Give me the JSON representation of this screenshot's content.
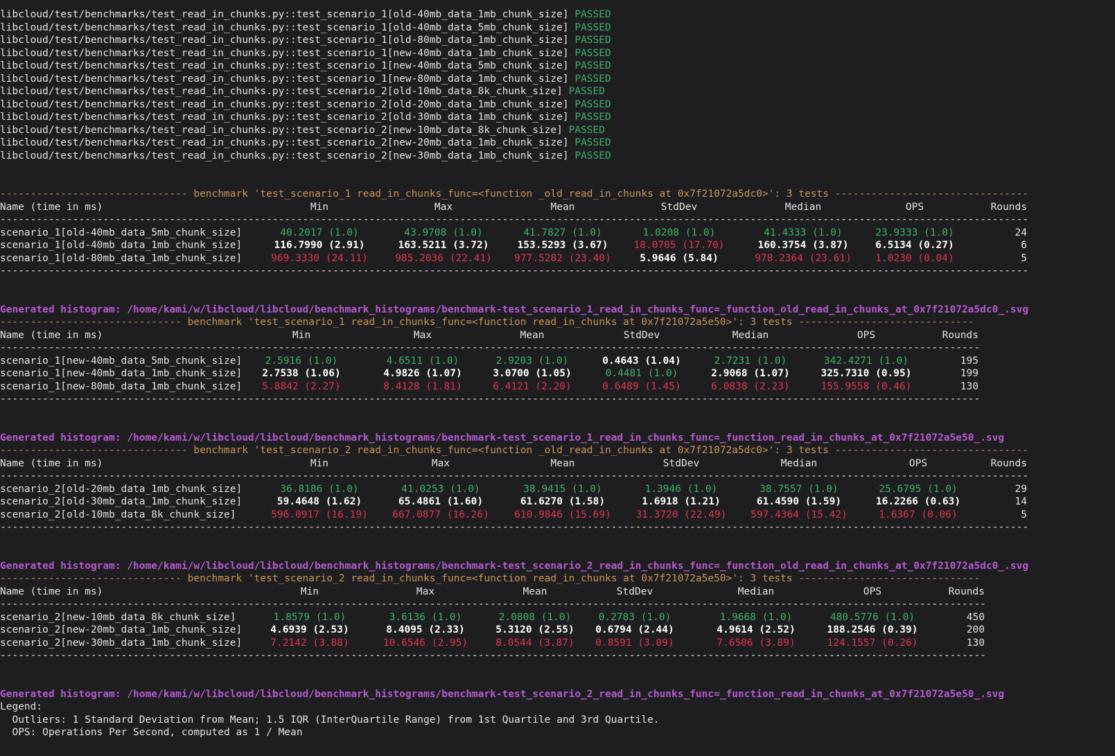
{
  "tests": [
    {
      "name": "libcloud/test/benchmarks/test_read_in_chunks.py::test_scenario_1[old-40mb_data_1mb_chunk_size]",
      "status": "PASSED"
    },
    {
      "name": "libcloud/test/benchmarks/test_read_in_chunks.py::test_scenario_1[old-40mb_data_5mb_chunk_size]",
      "status": "PASSED"
    },
    {
      "name": "libcloud/test/benchmarks/test_read_in_chunks.py::test_scenario_1[old-80mb_data_1mb_chunk_size]",
      "status": "PASSED"
    },
    {
      "name": "libcloud/test/benchmarks/test_read_in_chunks.py::test_scenario_1[new-40mb_data_1mb_chunk_size]",
      "status": "PASSED"
    },
    {
      "name": "libcloud/test/benchmarks/test_read_in_chunks.py::test_scenario_1[new-40mb_data_5mb_chunk_size]",
      "status": "PASSED"
    },
    {
      "name": "libcloud/test/benchmarks/test_read_in_chunks.py::test_scenario_1[new-80mb_data_1mb_chunk_size]",
      "status": "PASSED"
    },
    {
      "name": "libcloud/test/benchmarks/test_read_in_chunks.py::test_scenario_2[old-10mb_data_8k_chunk_size]",
      "status": "PASSED"
    },
    {
      "name": "libcloud/test/benchmarks/test_read_in_chunks.py::test_scenario_2[old-20mb_data_1mb_chunk_size]",
      "status": "PASSED"
    },
    {
      "name": "libcloud/test/benchmarks/test_read_in_chunks.py::test_scenario_2[old-30mb_data_1mb_chunk_size]",
      "status": "PASSED"
    },
    {
      "name": "libcloud/test/benchmarks/test_read_in_chunks.py::test_scenario_2[new-10mb_data_8k_chunk_size]",
      "status": "PASSED"
    },
    {
      "name": "libcloud/test/benchmarks/test_read_in_chunks.py::test_scenario_2[new-20mb_data_1mb_chunk_size]",
      "status": "PASSED"
    },
    {
      "name": "libcloud/test/benchmarks/test_read_in_chunks.py::test_scenario_2[new-30mb_data_1mb_chunk_size]",
      "status": "PASSED"
    }
  ],
  "benchmarks": [
    {
      "header": "------------------------------- benchmark 'test_scenario_1 read_in_chunks_func=<function _old_read_in_chunks at 0x7f21072a5dc0>': 3 tests --------------------------------",
      "columns": [
        "Name (time in ms)",
        "Min",
        "Max",
        "Mean",
        "StdDev",
        "Median",
        "OPS",
        "Rounds"
      ],
      "rule": "--------------------------------------------------------------------------------------------------------------------------------------------------------------------------",
      "rows": [
        {
          "name": "scenario_1[old-40mb_data_5mb_chunk_size]",
          "cells": [
            "40.2017 (1.0)",
            "43.9708 (1.0)",
            "41.7827 (1.0)",
            "1.0208 (1.0)",
            "41.4333 (1.0)",
            "23.9333 (1.0)"
          ],
          "colors": [
            "#3fb06a",
            "#3fb06a",
            "#3fb06a",
            "#3fb06a",
            "#3fb06a",
            "#3fb06a"
          ],
          "rounds": 24
        },
        {
          "name": "scenario_1[old-40mb_data_1mb_chunk_size]",
          "cells": [
            "116.7990 (2.91)",
            "163.5211 (3.72)",
            "153.5293 (3.67)",
            "18.0705 (17.70)",
            "160.3754 (3.87)",
            "6.5134 (0.27)"
          ],
          "colors": [
            "#ffffff",
            "#ffffff",
            "#ffffff",
            "#e0364b",
            "#ffffff",
            "#ffffff"
          ],
          "rounds": 6
        },
        {
          "name": "scenario_1[old-80mb_data_1mb_chunk_size]",
          "cells": [
            "969.3330 (24.11)",
            "985.2036 (22.41)",
            "977.5282 (23.40)",
            "5.9646 (5.84)",
            "978.2364 (23.61)",
            "1.0230 (0.04)"
          ],
          "colors": [
            "#e0364b",
            "#e0364b",
            "#e0364b",
            "#ffffff",
            "#e0364b",
            "#e0364b"
          ],
          "rounds": 5
        }
      ],
      "histogram": "Generated histogram: /home/kami/w/libcloud/libcloud/benchmark_histograms/benchmark-test_scenario_1_read_in_chunks_func=_function_old_read_in_chunks_at_0x7f21072a5dc0_.svg"
    },
    {
      "header": "------------------------------ benchmark 'test_scenario_1 read_in_chunks_func=<function read_in_chunks at 0x7f21072a5e50>': 3 tests -----------------------------",
      "columns": [
        "Name (time in ms)",
        "Min",
        "Max",
        "Mean",
        "StdDev",
        "Median",
        "OPS",
        "Rounds"
      ],
      "rule": "------------------------------------------------------------------------------------------------------------------------------------------------------------------",
      "rows": [
        {
          "name": "scenario_1[new-40mb_data_5mb_chunk_size]",
          "cells": [
            "2.5916 (1.0)",
            "4.6511 (1.0)",
            "2.9203 (1.0)",
            "0.4643 (1.04)",
            "2.7231 (1.0)",
            "342.4271 (1.0)"
          ],
          "colors": [
            "#3fb06a",
            "#3fb06a",
            "#3fb06a",
            "#ffffff",
            "#3fb06a",
            "#3fb06a"
          ],
          "rounds": 195
        },
        {
          "name": "scenario_1[new-40mb_data_1mb_chunk_size]",
          "cells": [
            "2.7538 (1.06)",
            "4.9826 (1.07)",
            "3.0700 (1.05)",
            "0.4481 (1.0)",
            "2.9068 (1.07)",
            "325.7310 (0.95)"
          ],
          "colors": [
            "#ffffff",
            "#ffffff",
            "#ffffff",
            "#3fb06a",
            "#ffffff",
            "#ffffff"
          ],
          "rounds": 199
        },
        {
          "name": "scenario_1[new-80mb_data_1mb_chunk_size]",
          "cells": [
            "5.8842 (2.27)",
            "8.4128 (1.81)",
            "6.4121 (2.20)",
            "0.6489 (1.45)",
            "6.0838 (2.23)",
            "155.9558 (0.46)"
          ],
          "colors": [
            "#e0364b",
            "#e0364b",
            "#e0364b",
            "#e0364b",
            "#e0364b",
            "#e0364b"
          ],
          "rounds": 130
        }
      ],
      "histogram": "Generated histogram: /home/kami/w/libcloud/libcloud/benchmark_histograms/benchmark-test_scenario_1_read_in_chunks_func=_function_read_in_chunks_at_0x7f21072a5e50_.svg"
    },
    {
      "header": "------------------------------- benchmark 'test_scenario_2 read_in_chunks_func=<function _old_read_in_chunks at 0x7f21072a5dc0>': 3 tests --------------------------------",
      "columns": [
        "Name (time in ms)",
        "Min",
        "Max",
        "Mean",
        "StdDev",
        "Median",
        "OPS",
        "Rounds"
      ],
      "rule": "--------------------------------------------------------------------------------------------------------------------------------------------------------------------------",
      "rows": [
        {
          "name": "scenario_2[old-20mb_data_1mb_chunk_size]",
          "cells": [
            "36.8186 (1.0)",
            "41.0253 (1.0)",
            "38.9415 (1.0)",
            "1.3946 (1.0)",
            "38.7557 (1.0)",
            "25.6795 (1.0)"
          ],
          "colors": [
            "#3fb06a",
            "#3fb06a",
            "#3fb06a",
            "#3fb06a",
            "#3fb06a",
            "#3fb06a"
          ],
          "rounds": 29
        },
        {
          "name": "scenario_2[old-30mb_data_1mb_chunk_size]",
          "cells": [
            "59.4648 (1.62)",
            "65.4861 (1.60)",
            "61.6270 (1.58)",
            "1.6918 (1.21)",
            "61.4590 (1.59)",
            "16.2266 (0.63)"
          ],
          "colors": [
            "#ffffff",
            "#ffffff",
            "#ffffff",
            "#ffffff",
            "#ffffff",
            "#ffffff"
          ],
          "rounds": 14
        },
        {
          "name": "scenario_2[old-10mb_data_8k_chunk_size]",
          "cells": [
            "596.0917 (16.19)",
            "667.0877 (16.26)",
            "610.9846 (15.69)",
            "31.3720 (22.49)",
            "597.4364 (15.42)",
            "1.6367 (0.06)"
          ],
          "colors": [
            "#e0364b",
            "#e0364b",
            "#e0364b",
            "#e0364b",
            "#e0364b",
            "#e0364b"
          ],
          "rounds": 5
        }
      ],
      "histogram": "Generated histogram: /home/kami/w/libcloud/libcloud/benchmark_histograms/benchmark-test_scenario_2_read_in_chunks_func=_function_old_read_in_chunks_at_0x7f21072a5dc0_.svg"
    },
    {
      "header": "------------------------------ benchmark 'test_scenario_2 read_in_chunks_func=<function read_in_chunks at 0x7f21072a5e50>': 3 tests ------------------------------",
      "columns": [
        "Name (time in ms)",
        "Min",
        "Max",
        "Mean",
        "StdDev",
        "Median",
        "OPS",
        "Rounds"
      ],
      "rule": "-------------------------------------------------------------------------------------------------------------------------------------------------------------------",
      "rows": [
        {
          "name": "scenario_2[new-10mb_data_8k_chunk_size]",
          "cells": [
            "1.8579 (1.0)",
            "3.6136 (1.0)",
            "2.0808 (1.0)",
            "0.2783 (1.0)",
            "1.9668 (1.0)",
            "480.5776 (1.0)"
          ],
          "colors": [
            "#3fb06a",
            "#3fb06a",
            "#3fb06a",
            "#3fb06a",
            "#3fb06a",
            "#3fb06a"
          ],
          "rounds": 450
        },
        {
          "name": "scenario_2[new-20mb_data_1mb_chunk_size]",
          "cells": [
            "4.6939 (2.53)",
            "8.4095 (2.33)",
            "5.3120 (2.55)",
            "0.6794 (2.44)",
            "4.9614 (2.52)",
            "188.2546 (0.39)"
          ],
          "colors": [
            "#ffffff",
            "#ffffff",
            "#ffffff",
            "#ffffff",
            "#ffffff",
            "#ffffff"
          ],
          "rounds": 200
        },
        {
          "name": "scenario_2[new-30mb_data_1mb_chunk_size]",
          "cells": [
            "7.2142 (3.88)",
            "10.6546 (2.95)",
            "8.0544 (3.87)",
            "0.8591 (3.09)",
            "7.6506 (3.89)",
            "124.1557 (0.26)"
          ],
          "colors": [
            "#e0364b",
            "#e0364b",
            "#e0364b",
            "#e0364b",
            "#e0364b",
            "#e0364b"
          ],
          "rounds": 130
        }
      ],
      "histogram": "Generated histogram: /home/kami/w/libcloud/libcloud/benchmark_histograms/benchmark-test_scenario_2_read_in_chunks_func=_function_read_in_chunks_at_0x7f21072a5e50_.svg"
    }
  ],
  "legend": [
    "Legend:",
    "  Outliers: 1 Standard Deviation from Mean; 1.5 IQR (InterQuartile Range) from 1st Quartile and 3rd Quartile.",
    "  OPS: Operations Per Second, computed as 1 / Mean"
  ],
  "status_color": "#3fb06a"
}
